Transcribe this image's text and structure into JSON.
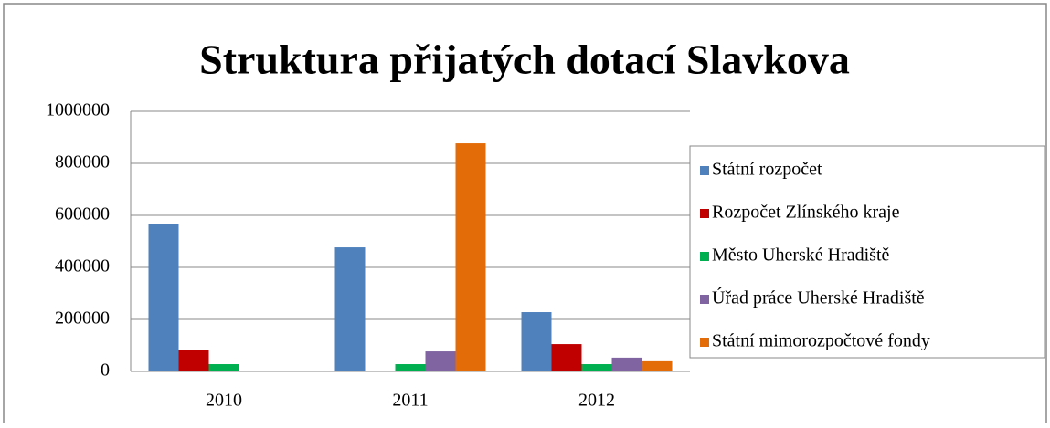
{
  "chart_data": {
    "type": "bar",
    "title": "Struktura přijatých dotací Slavkova",
    "categories": [
      "2010",
      "2011",
      "2012"
    ],
    "series": [
      {
        "name": "Státní rozpočet",
        "color": "#4f81bd",
        "values": [
          565000,
          477000,
          228000
        ]
      },
      {
        "name": "Rozpočet Zlínského kraje",
        "color": "#c00000",
        "values": [
          84000,
          0,
          105000
        ]
      },
      {
        "name": "Město Uherské Hradiště",
        "color": "#00b050",
        "values": [
          28000,
          28000,
          28000
        ]
      },
      {
        "name": "Úřad práce Uherské Hradiště",
        "color": "#8064a2",
        "values": [
          0,
          77000,
          53000
        ]
      },
      {
        "name": "Státní mimorozpočtové fondy",
        "color": "#e36c09",
        "values": [
          0,
          877000,
          39000
        ]
      }
    ],
    "ylim": [
      0,
      1000000
    ],
    "yticks": [
      0,
      200000,
      400000,
      600000,
      800000,
      1000000
    ],
    "grid": true,
    "legend": "right"
  }
}
